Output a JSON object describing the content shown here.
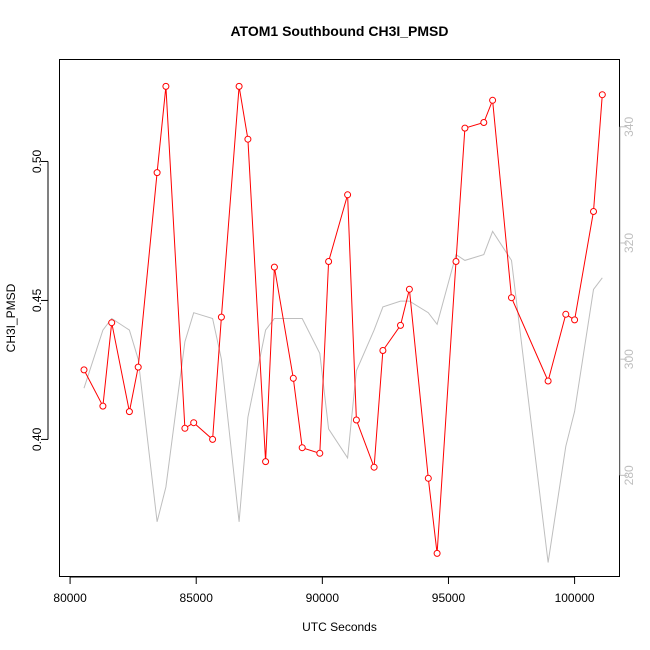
{
  "chart_data": {
    "type": "line",
    "title": "ATOM1 Southbound CH3I_PMSD",
    "xlabel": "UTC Seconds",
    "ylabel": "CH3I_PMSD",
    "xlim": [
      79600,
      101800
    ],
    "ylim": [
      0.3505,
      0.5365
    ],
    "y2lim": [
      262.5,
      351.5
    ],
    "grid": false,
    "x_ticks": [
      80000,
      85000,
      90000,
      95000,
      100000
    ],
    "y_ticks": [
      0.4,
      0.45,
      0.5
    ],
    "y2_ticks": [
      280,
      300,
      320,
      340
    ],
    "series": [
      {
        "axis": "left",
        "color": "#ff0000",
        "markers": "open-circle",
        "x": [
          80550,
          81300,
          81650,
          82350,
          82700,
          83450,
          83800,
          84550,
          84900,
          85650,
          86000,
          86700,
          87050,
          87750,
          88100,
          88850,
          89200,
          89900,
          90250,
          91000,
          91350,
          92050,
          92400,
          93100,
          93450,
          94200,
          94550,
          95300,
          95650,
          96400,
          96750,
          97500,
          98950,
          99650,
          100000,
          100750,
          101100
        ],
        "y": [
          0.425,
          0.412,
          0.442,
          0.41,
          0.426,
          0.496,
          0.527,
          0.404,
          0.406,
          0.4,
          0.444,
          0.527,
          0.508,
          0.392,
          0.462,
          0.422,
          0.397,
          0.395,
          0.464,
          0.488,
          0.407,
          0.39,
          0.432,
          0.441,
          0.454,
          0.386,
          0.359,
          0.464,
          0.512,
          0.514,
          0.522,
          0.451,
          0.421,
          0.445,
          0.443,
          0.482,
          0.524
        ]
      },
      {
        "axis": "right",
        "color": "#bebebe",
        "markers": "none",
        "x": [
          80550,
          81300,
          81650,
          82350,
          82700,
          83450,
          83800,
          84550,
          84900,
          85650,
          86000,
          86700,
          87050,
          87750,
          88100,
          88850,
          89200,
          89900,
          90250,
          91000,
          91350,
          92050,
          92400,
          93100,
          93450,
          94200,
          94550,
          95300,
          95650,
          96400,
          96750,
          97500,
          98950,
          99650,
          100000,
          100750,
          101100
        ],
        "y": [
          295,
          305,
          307,
          305,
          300,
          272,
          278,
          303,
          308,
          307,
          300,
          272,
          290,
          305,
          307,
          307,
          307,
          301,
          288,
          283,
          298,
          305,
          309,
          310,
          310,
          308,
          306,
          318,
          317,
          318,
          322,
          317,
          265,
          285,
          291,
          312,
          314
        ]
      }
    ]
  }
}
